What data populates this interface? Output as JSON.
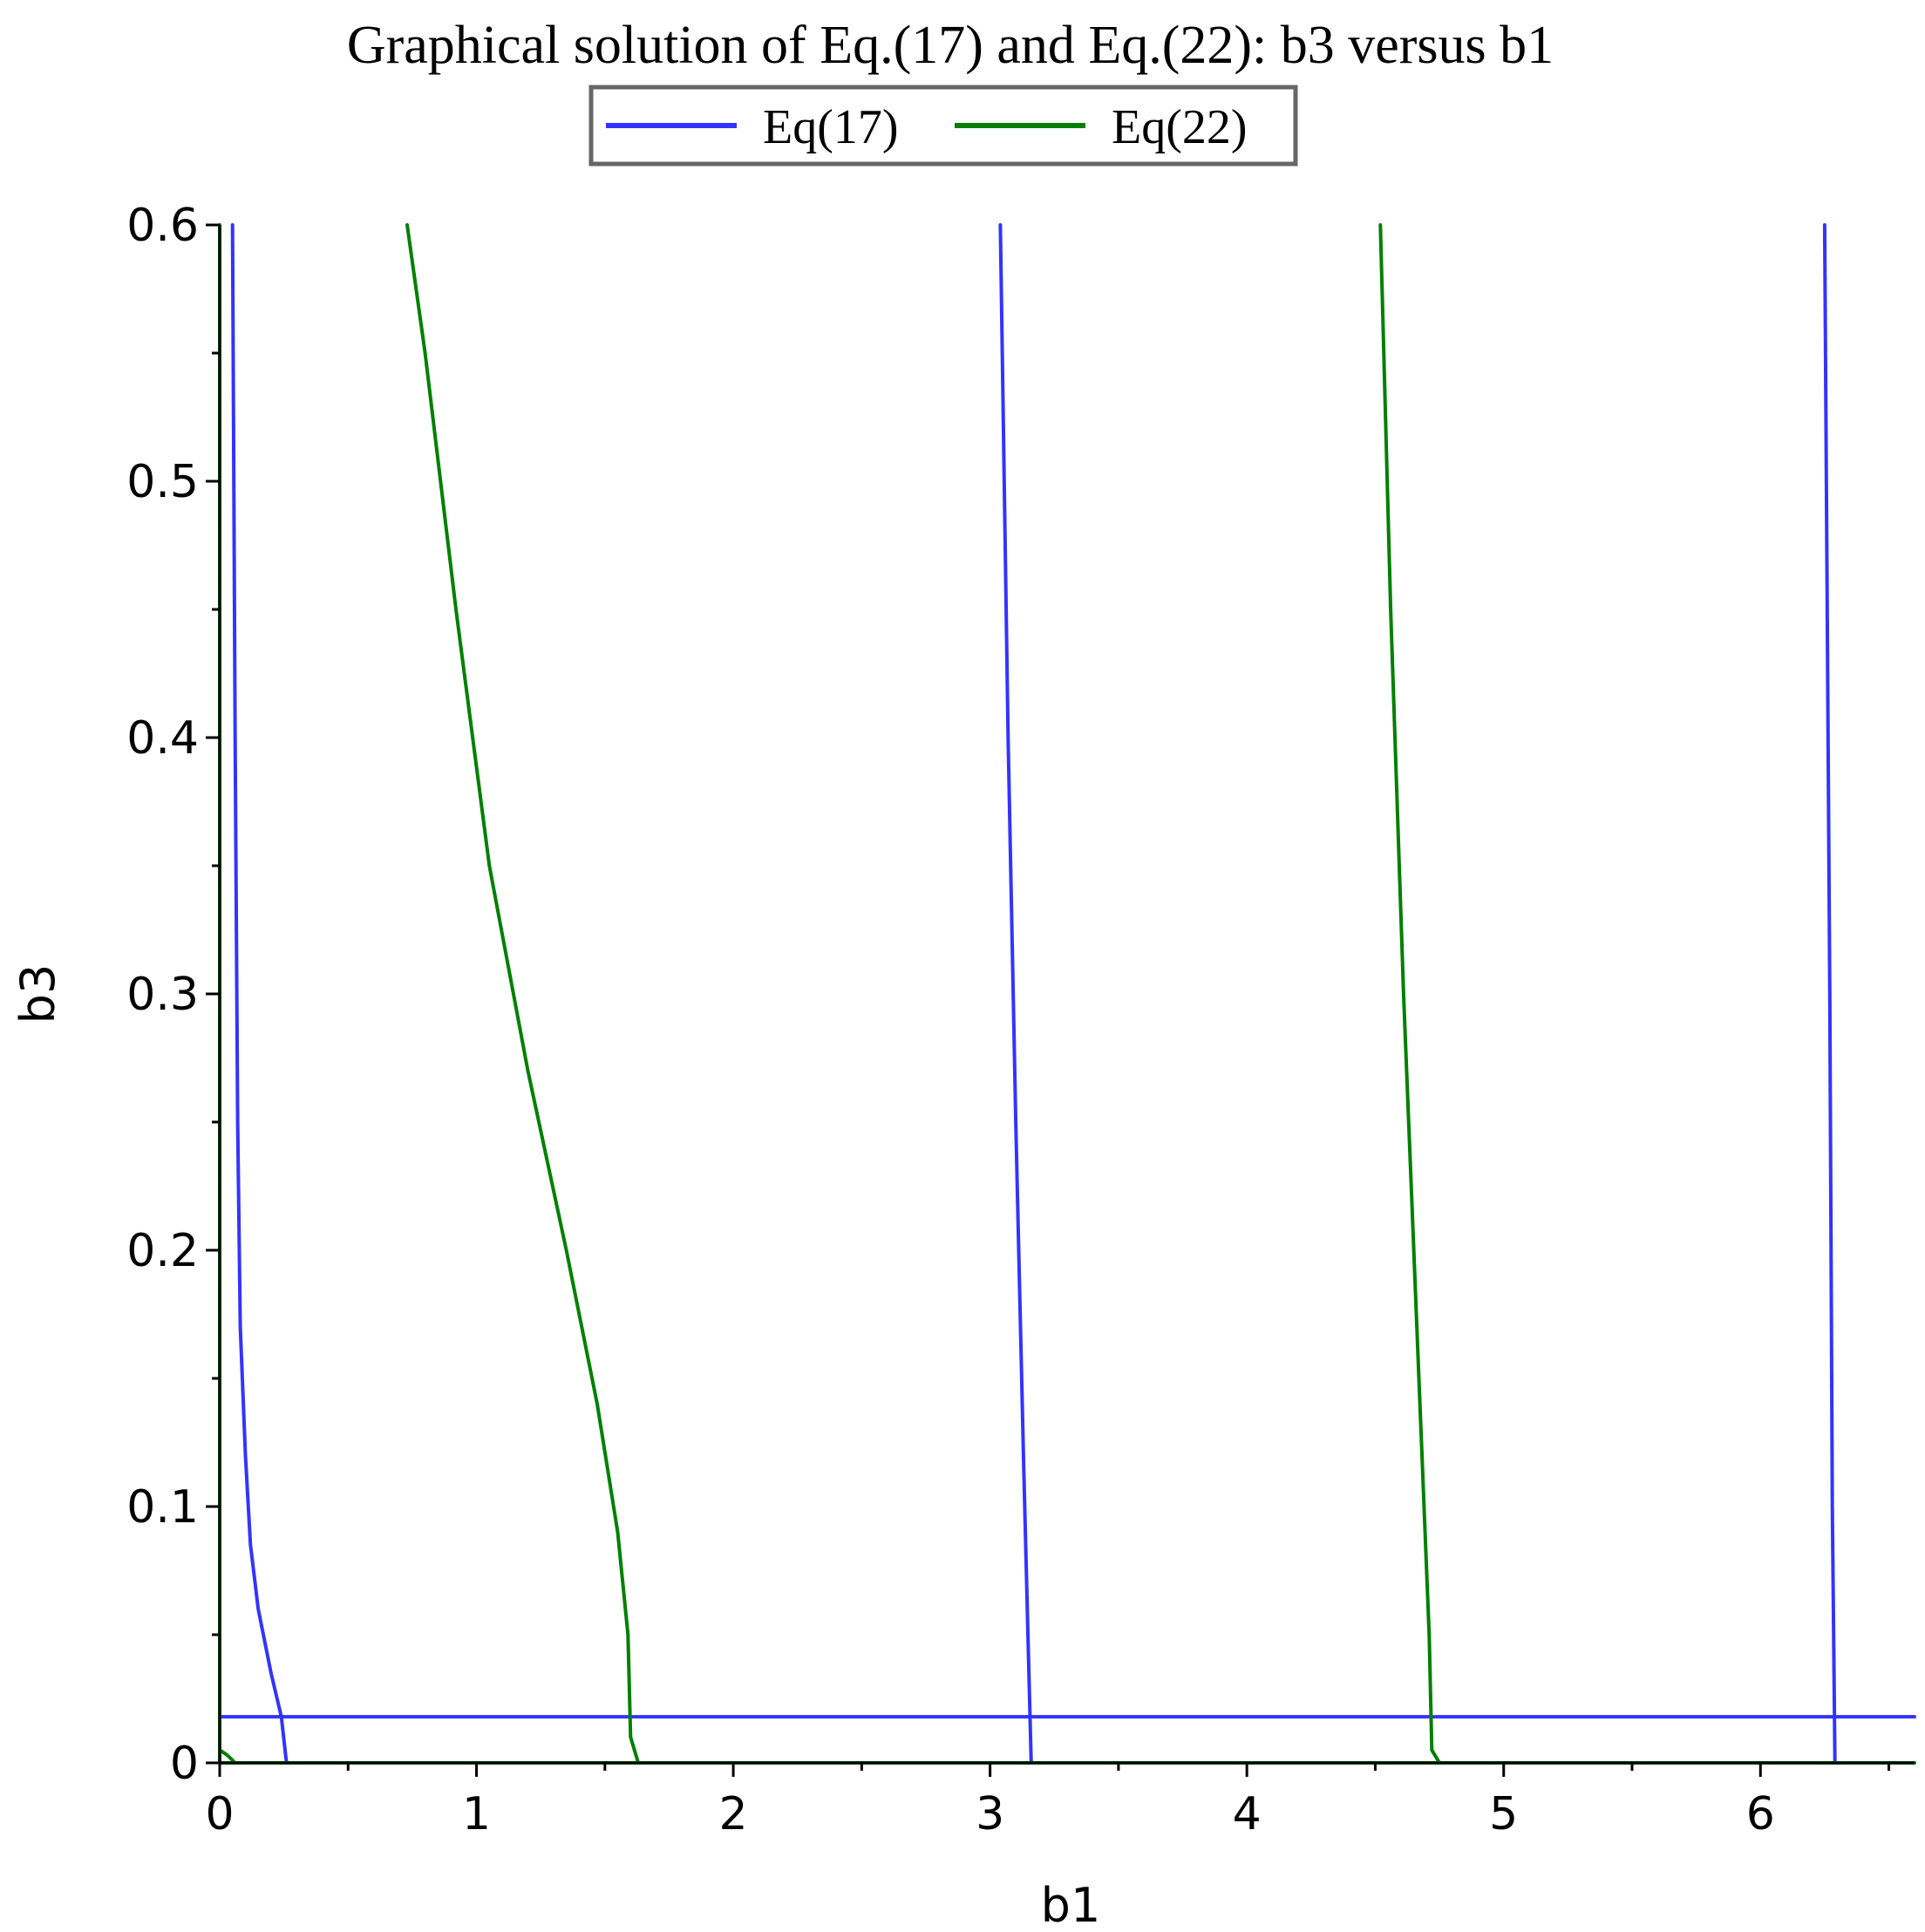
{
  "chart_data": {
    "type": "line",
    "title": "Graphical solution of Eq.(17) and Eq.(22): b3 versus b1",
    "xlabel": "b1",
    "ylabel": "b3",
    "xlim": [
      0,
      6.6
    ],
    "ylim": [
      0,
      0.6
    ],
    "x_ticks": [
      0,
      1,
      2,
      3,
      4,
      5,
      6
    ],
    "x_tick_labels": [
      "0",
      "1",
      "2",
      "3",
      "4",
      "5",
      "6"
    ],
    "x_minor_step": 0.5,
    "y_ticks": [
      0,
      0.1,
      0.2,
      0.3,
      0.4,
      0.5,
      0.6
    ],
    "y_tick_labels": [
      "0",
      "0.1",
      "0.2",
      "0.3",
      "0.4",
      "0.5",
      "0.6"
    ],
    "y_minor_step": 0.05,
    "grid": false,
    "legend_position": "top-center",
    "series": [
      {
        "name": "Eq(17)",
        "color": "#3333ff",
        "curves": [
          [
            [
              0.05,
              0.6
            ],
            [
              0.06,
              0.4
            ],
            [
              0.07,
              0.25
            ],
            [
              0.08,
              0.17
            ],
            [
              0.1,
              0.12
            ],
            [
              0.12,
              0.085
            ],
            [
              0.15,
              0.06
            ],
            [
              0.2,
              0.035
            ],
            [
              0.24,
              0.018
            ],
            [
              0.26,
              0.0
            ]
          ],
          [
            [
              3.04,
              0.6
            ],
            [
              3.07,
              0.4
            ],
            [
              3.1,
              0.25
            ],
            [
              3.13,
              0.12
            ],
            [
              3.15,
              0.04
            ],
            [
              3.16,
              0.0
            ]
          ],
          [
            [
              6.25,
              0.6
            ],
            [
              6.27,
              0.3
            ],
            [
              6.28,
              0.1
            ],
            [
              6.29,
              0.0
            ]
          ],
          [
            [
              0,
              0.018
            ],
            [
              6.6,
              0.018
            ]
          ]
        ]
      },
      {
        "name": "Eq(22)",
        "color": "#008000",
        "curves": [
          [
            [
              0.73,
              0.6
            ],
            [
              0.8,
              0.55
            ],
            [
              0.92,
              0.45
            ],
            [
              1.05,
              0.35
            ],
            [
              1.2,
              0.27
            ],
            [
              1.35,
              0.2
            ],
            [
              1.47,
              0.14
            ],
            [
              1.55,
              0.09
            ],
            [
              1.59,
              0.05
            ],
            [
              1.6,
              0.01
            ],
            [
              1.63,
              0.0
            ]
          ],
          [
            [
              4.52,
              0.6
            ],
            [
              4.56,
              0.45
            ],
            [
              4.61,
              0.3
            ],
            [
              4.67,
              0.15
            ],
            [
              4.71,
              0.05
            ],
            [
              4.72,
              0.005
            ],
            [
              4.75,
              0.0
            ]
          ],
          [
            [
              0,
              0.6
            ],
            [
              0,
              0.0
            ]
          ],
          [
            [
              0,
              0.0
            ],
            [
              6.6,
              0.0
            ]
          ],
          [
            [
              0.0,
              0.005
            ],
            [
              0.03,
              0.003
            ],
            [
              0.06,
              0.0
            ]
          ]
        ]
      }
    ]
  }
}
